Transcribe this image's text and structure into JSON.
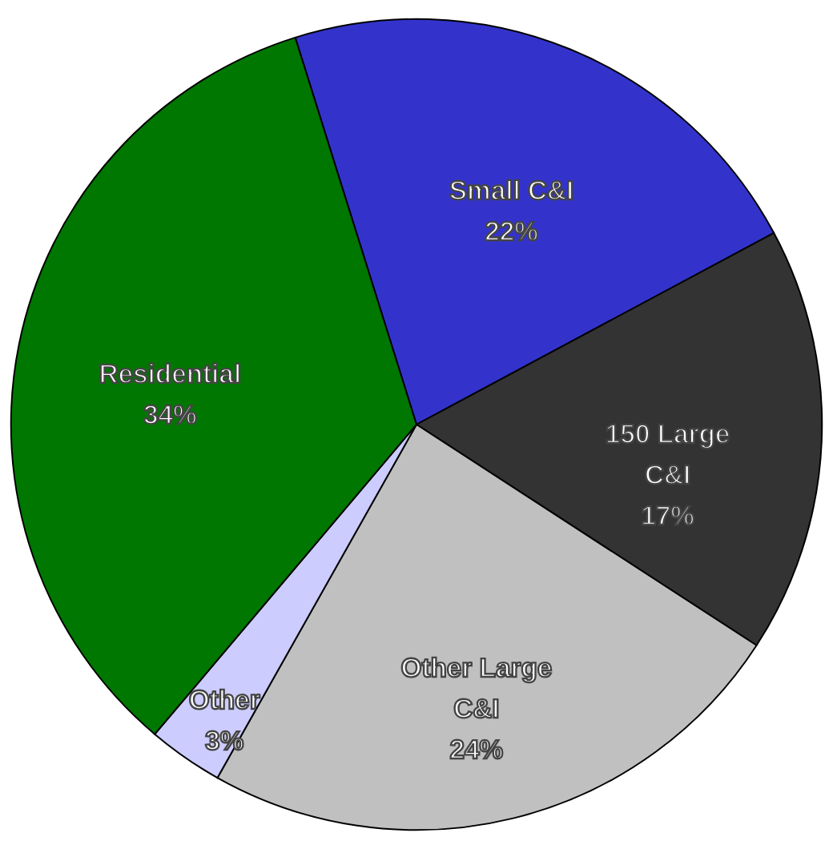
{
  "chart_data": {
    "type": "pie",
    "categories": [
      "Small C&I",
      "150 Large C&I",
      "Other Large C&I",
      "Other",
      "Residential"
    ],
    "values": [
      22,
      17,
      24,
      3,
      34
    ],
    "value_labels": [
      "22%",
      "17%",
      "24%",
      "3%",
      "34%"
    ],
    "colors": [
      "#3333cc",
      "#333333",
      "#c0c0c0",
      "#ccccff",
      "#007700"
    ]
  }
}
